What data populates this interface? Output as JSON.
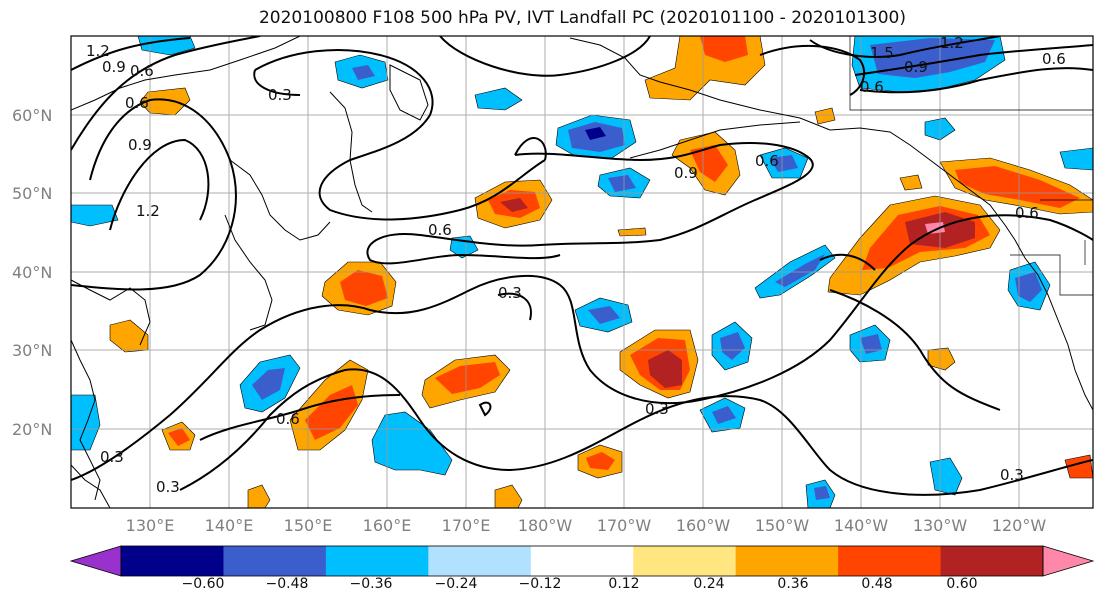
{
  "title": "2020100800 F108 500 hPa PV, IVT Landfall PC (2020101100 - 2020101300)",
  "map": {
    "lat_labels": [
      "60°N",
      "50°N",
      "40°N",
      "30°N",
      "20°N"
    ],
    "lon_labels": [
      "130°E",
      "140°E",
      "150°E",
      "160°E",
      "170°E",
      "180°W",
      "170°W",
      "160°W",
      "150°W",
      "140°W",
      "130°W",
      "120°W"
    ],
    "contour_labels": [
      "1.2",
      "0.9",
      "0.6",
      "0.6",
      "0.9",
      "1.2",
      "0.3",
      "0.6",
      "0.9",
      "0.6",
      "1.5",
      "0.9",
      "1.2",
      "0.6",
      "0.6",
      "0.6",
      "0.3",
      "0.6",
      "0.3",
      "0.3",
      "0.3",
      "0.3"
    ]
  },
  "colorbar": {
    "tick_labels": [
      "−0.60",
      "−0.48",
      "−0.36",
      "−0.24",
      "−0.12",
      "0.12",
      "0.24",
      "0.36",
      "0.48",
      "0.60"
    ],
    "colors": [
      "#9932cc",
      "#00008b",
      "#3a5fcd",
      "#00bfff",
      "#b0e2ff",
      "#ffffff",
      "#ffe680",
      "#ffa500",
      "#ff4500",
      "#b22222",
      "#ff88aa"
    ]
  }
}
